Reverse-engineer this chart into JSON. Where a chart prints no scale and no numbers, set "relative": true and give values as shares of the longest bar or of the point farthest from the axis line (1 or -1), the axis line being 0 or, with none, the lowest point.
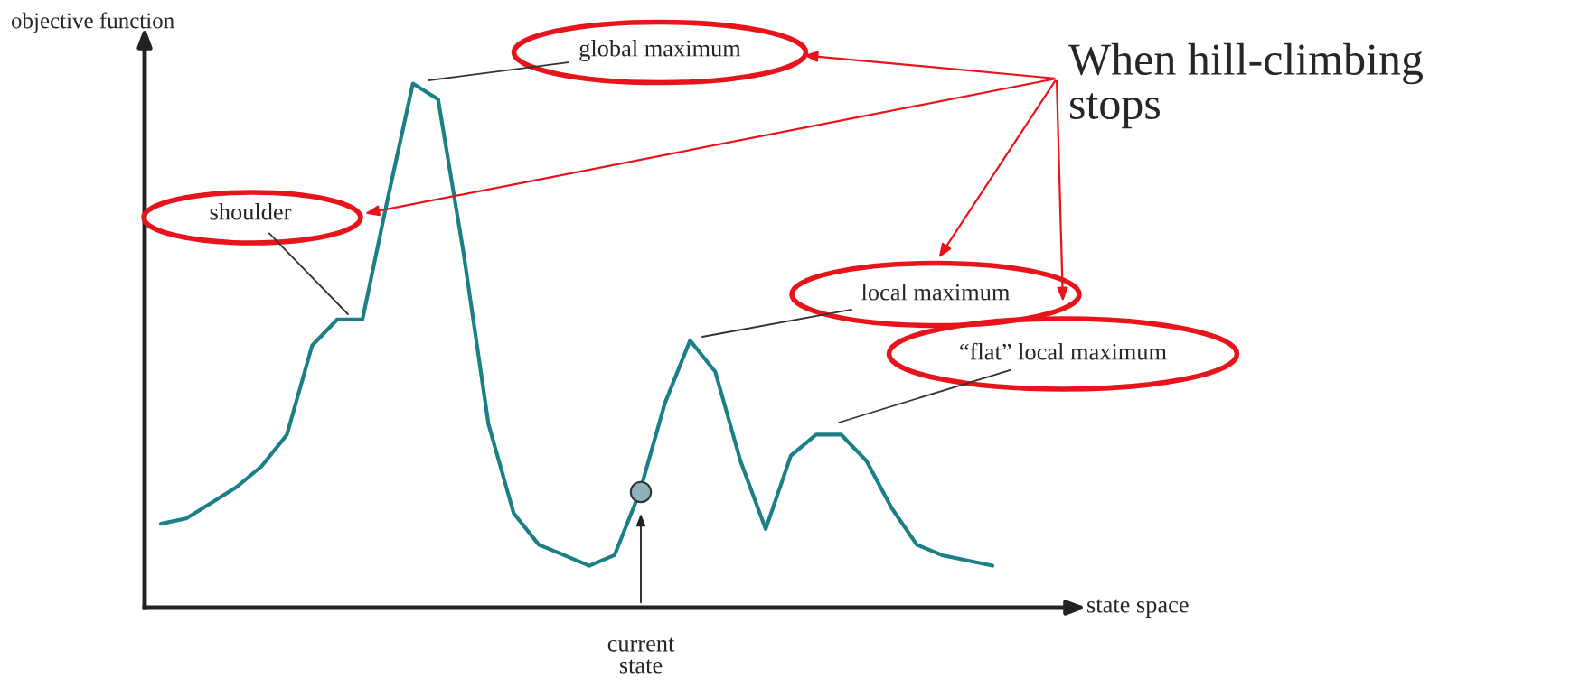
{
  "chart_data": {
    "type": "line",
    "relative": true,
    "xlabel": "state space",
    "ylabel": "objective function",
    "categories": [
      null,
      null,
      null,
      null,
      null,
      null,
      null,
      null,
      null,
      null,
      null,
      null,
      null,
      null,
      null,
      null,
      null,
      null,
      null,
      null,
      null,
      null,
      null,
      null,
      null,
      null,
      null,
      null,
      null,
      null,
      null,
      null,
      null,
      null
    ],
    "series": [
      {
        "color": "#1a7f86",
        "values": [
          0.16,
          0.17,
          0.2,
          0.23,
          0.27,
          0.33,
          0.5,
          0.55,
          0.55,
          0.78,
          1.0,
          0.97,
          0.68,
          0.35,
          0.18,
          0.12,
          0.1,
          0.08,
          0.1,
          0.22,
          0.39,
          0.51,
          0.45,
          0.28,
          0.15,
          0.29,
          0.33,
          0.33,
          0.28,
          0.19,
          0.12,
          0.1,
          0.09,
          0.08
        ]
      }
    ],
    "annotations": [
      "global maximum",
      "shoulder",
      "local maximum",
      "“flat” local maximum",
      "current\nstate",
      "When hill-climbing\nstops"
    ],
    "line_style": "solid",
    "grid": false,
    "legend": false
  }
}
